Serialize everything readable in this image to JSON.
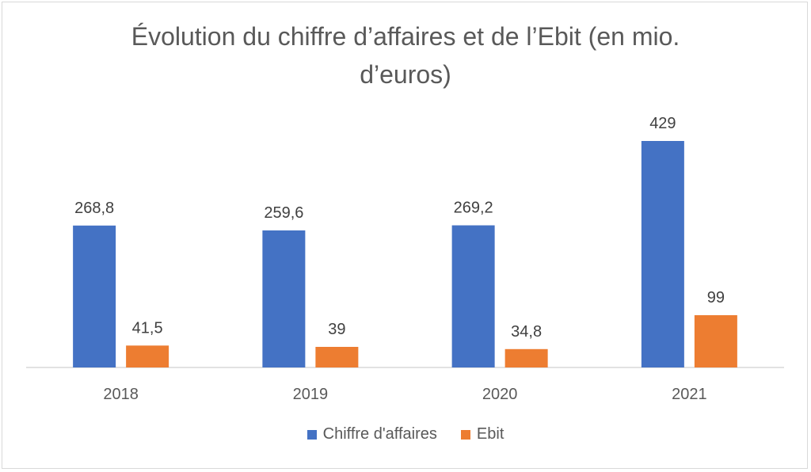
{
  "chart_data": {
    "type": "bar",
    "title_lines": [
      "Évolution du chiffre d’affaires et de l’Ebit (en mio.",
      "d’euros)"
    ],
    "categories": [
      "2018",
      "2019",
      "2020",
      "2021"
    ],
    "series": [
      {
        "name": "Chiffre d'affaires",
        "values": [
          268.8,
          259.6,
          269.2,
          429
        ],
        "labels": [
          "268,8",
          "259,6",
          "269,2",
          "429"
        ],
        "color": "#4472c4"
      },
      {
        "name": "Ebit",
        "values": [
          41.5,
          39,
          34.8,
          99
        ],
        "labels": [
          "41,5",
          "39",
          "34,8",
          "99"
        ],
        "color": "#ed7d31"
      }
    ],
    "ylim": [
      0,
      450
    ],
    "grid": false,
    "legend_position": "bottom"
  }
}
